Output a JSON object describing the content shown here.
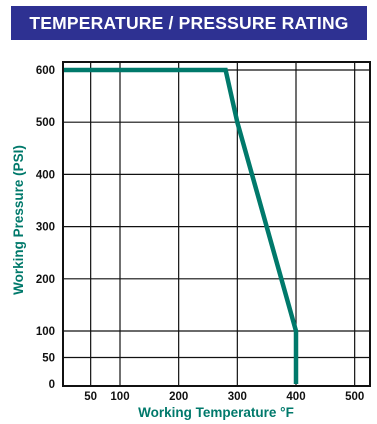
{
  "colors": {
    "title_bg": "#2e3192",
    "title_text": "#ffffff",
    "accent": "#00796b",
    "grid": "#111111"
  },
  "chart_data": {
    "type": "line",
    "title": "TEMPERATURE / PRESSURE RATING",
    "xlabel": "Working Temperature °F",
    "ylabel": "Working Pressure (PSI)",
    "x_ticks": [
      50,
      100,
      200,
      300,
      400,
      500
    ],
    "y_ticks": [
      0,
      50,
      100,
      200,
      300,
      400,
      500,
      600
    ],
    "xlim": [
      25,
      525
    ],
    "ylim": [
      0,
      600
    ],
    "grid": true,
    "legend": "none",
    "series": [
      {
        "x": [
          25,
          280,
          300,
          400,
          400
        ],
        "y": [
          600,
          600,
          500,
          100,
          0
        ]
      }
    ]
  }
}
